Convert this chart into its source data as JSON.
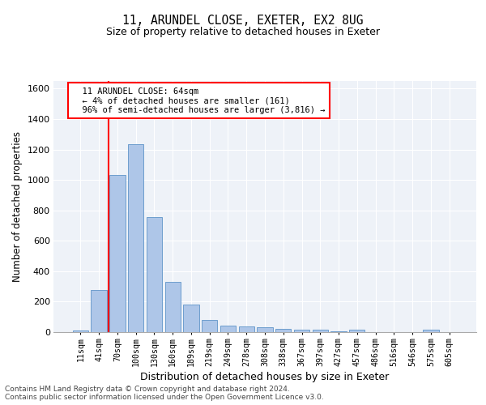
{
  "title": "11, ARUNDEL CLOSE, EXETER, EX2 8UG",
  "subtitle": "Size of property relative to detached houses in Exeter",
  "xlabel": "Distribution of detached houses by size in Exeter",
  "ylabel": "Number of detached properties",
  "bar_labels": [
    "11sqm",
    "41sqm",
    "70sqm",
    "100sqm",
    "130sqm",
    "160sqm",
    "189sqm",
    "219sqm",
    "249sqm",
    "278sqm",
    "308sqm",
    "338sqm",
    "367sqm",
    "397sqm",
    "427sqm",
    "457sqm",
    "486sqm",
    "516sqm",
    "546sqm",
    "575sqm",
    "605sqm"
  ],
  "bar_heights": [
    10,
    275,
    1030,
    1235,
    755,
    330,
    180,
    80,
    43,
    37,
    30,
    20,
    15,
    15,
    3,
    15,
    0,
    0,
    0,
    15,
    0
  ],
  "bar_color": "#aec6e8",
  "bar_edge_color": "#5f94c8",
  "property_label": "11 ARUNDEL CLOSE: 64sqm",
  "pct_smaller": "4% of detached houses are smaller (161)",
  "pct_larger": "96% of semi-detached houses are larger (3,816) →",
  "vline_x": 1.5,
  "ylim": [
    0,
    1650
  ],
  "yticks": [
    0,
    200,
    400,
    600,
    800,
    1000,
    1200,
    1400,
    1600
  ],
  "background_color": "#eef2f8",
  "grid_color": "#ffffff",
  "footer_line1": "Contains HM Land Registry data © Crown copyright and database right 2024.",
  "footer_line2": "Contains public sector information licensed under the Open Government Licence v3.0."
}
